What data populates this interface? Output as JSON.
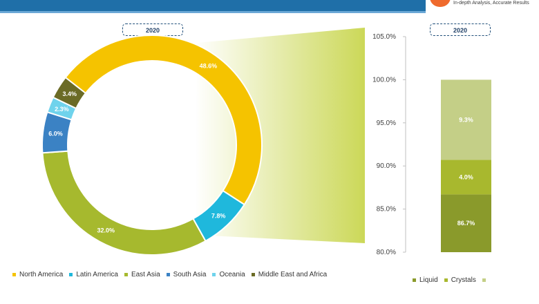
{
  "header": {
    "tagline": "In-depth Analysis, Accurate Results"
  },
  "colors": {
    "north_america": "#f5c300",
    "latin_america": "#1fb8dc",
    "east_asia": "#a6b92e",
    "south_asia": "#3b82c4",
    "oceania": "#6fd3ec",
    "middle_east_africa": "#6b6b26",
    "liquid": "#8a9a2b",
    "crystals": "#a8b82e",
    "other": "#c4cf87",
    "highlight": "#c9d64f"
  },
  "chart_data": [
    {
      "type": "pie",
      "title": "2020",
      "slices": [
        {
          "label": "North America",
          "value": 48.6,
          "display": "48.6%",
          "color_key": "north_america"
        },
        {
          "label": "Latin America",
          "value": 7.8,
          "display": "7.8%",
          "color_key": "latin_america"
        },
        {
          "label": "East Asia",
          "value": 32.0,
          "display": "32.0%",
          "color_key": "east_asia"
        },
        {
          "label": "South Asia",
          "value": 6.0,
          "display": "6.0%",
          "color_key": "south_asia"
        },
        {
          "label": "Oceania",
          "value": 2.3,
          "display": "2.3%",
          "color_key": "oceania"
        },
        {
          "label": "Middle East and Africa",
          "value": 3.4,
          "display": "3.4%",
          "color_key": "middle_east_africa"
        }
      ],
      "legend_position": "bottom"
    },
    {
      "type": "bar",
      "stacked": true,
      "title": "2020",
      "ylim": [
        80,
        105
      ],
      "y_ticks": [
        "80.0%",
        "85.0%",
        "90.0%",
        "95.0%",
        "100.0%",
        "105.0%"
      ],
      "y_tick_values": [
        80,
        85,
        90,
        95,
        100,
        105
      ],
      "series": [
        {
          "name": "Liquid",
          "value": 86.7,
          "display": "86.7%",
          "color_key": "liquid"
        },
        {
          "name": "Crystals",
          "value": 4.0,
          "display": "4.0%",
          "color_key": "crystals"
        },
        {
          "name": "",
          "value": 9.3,
          "display": "9.3%",
          "color_key": "other"
        }
      ],
      "legend_position": "bottom"
    }
  ]
}
